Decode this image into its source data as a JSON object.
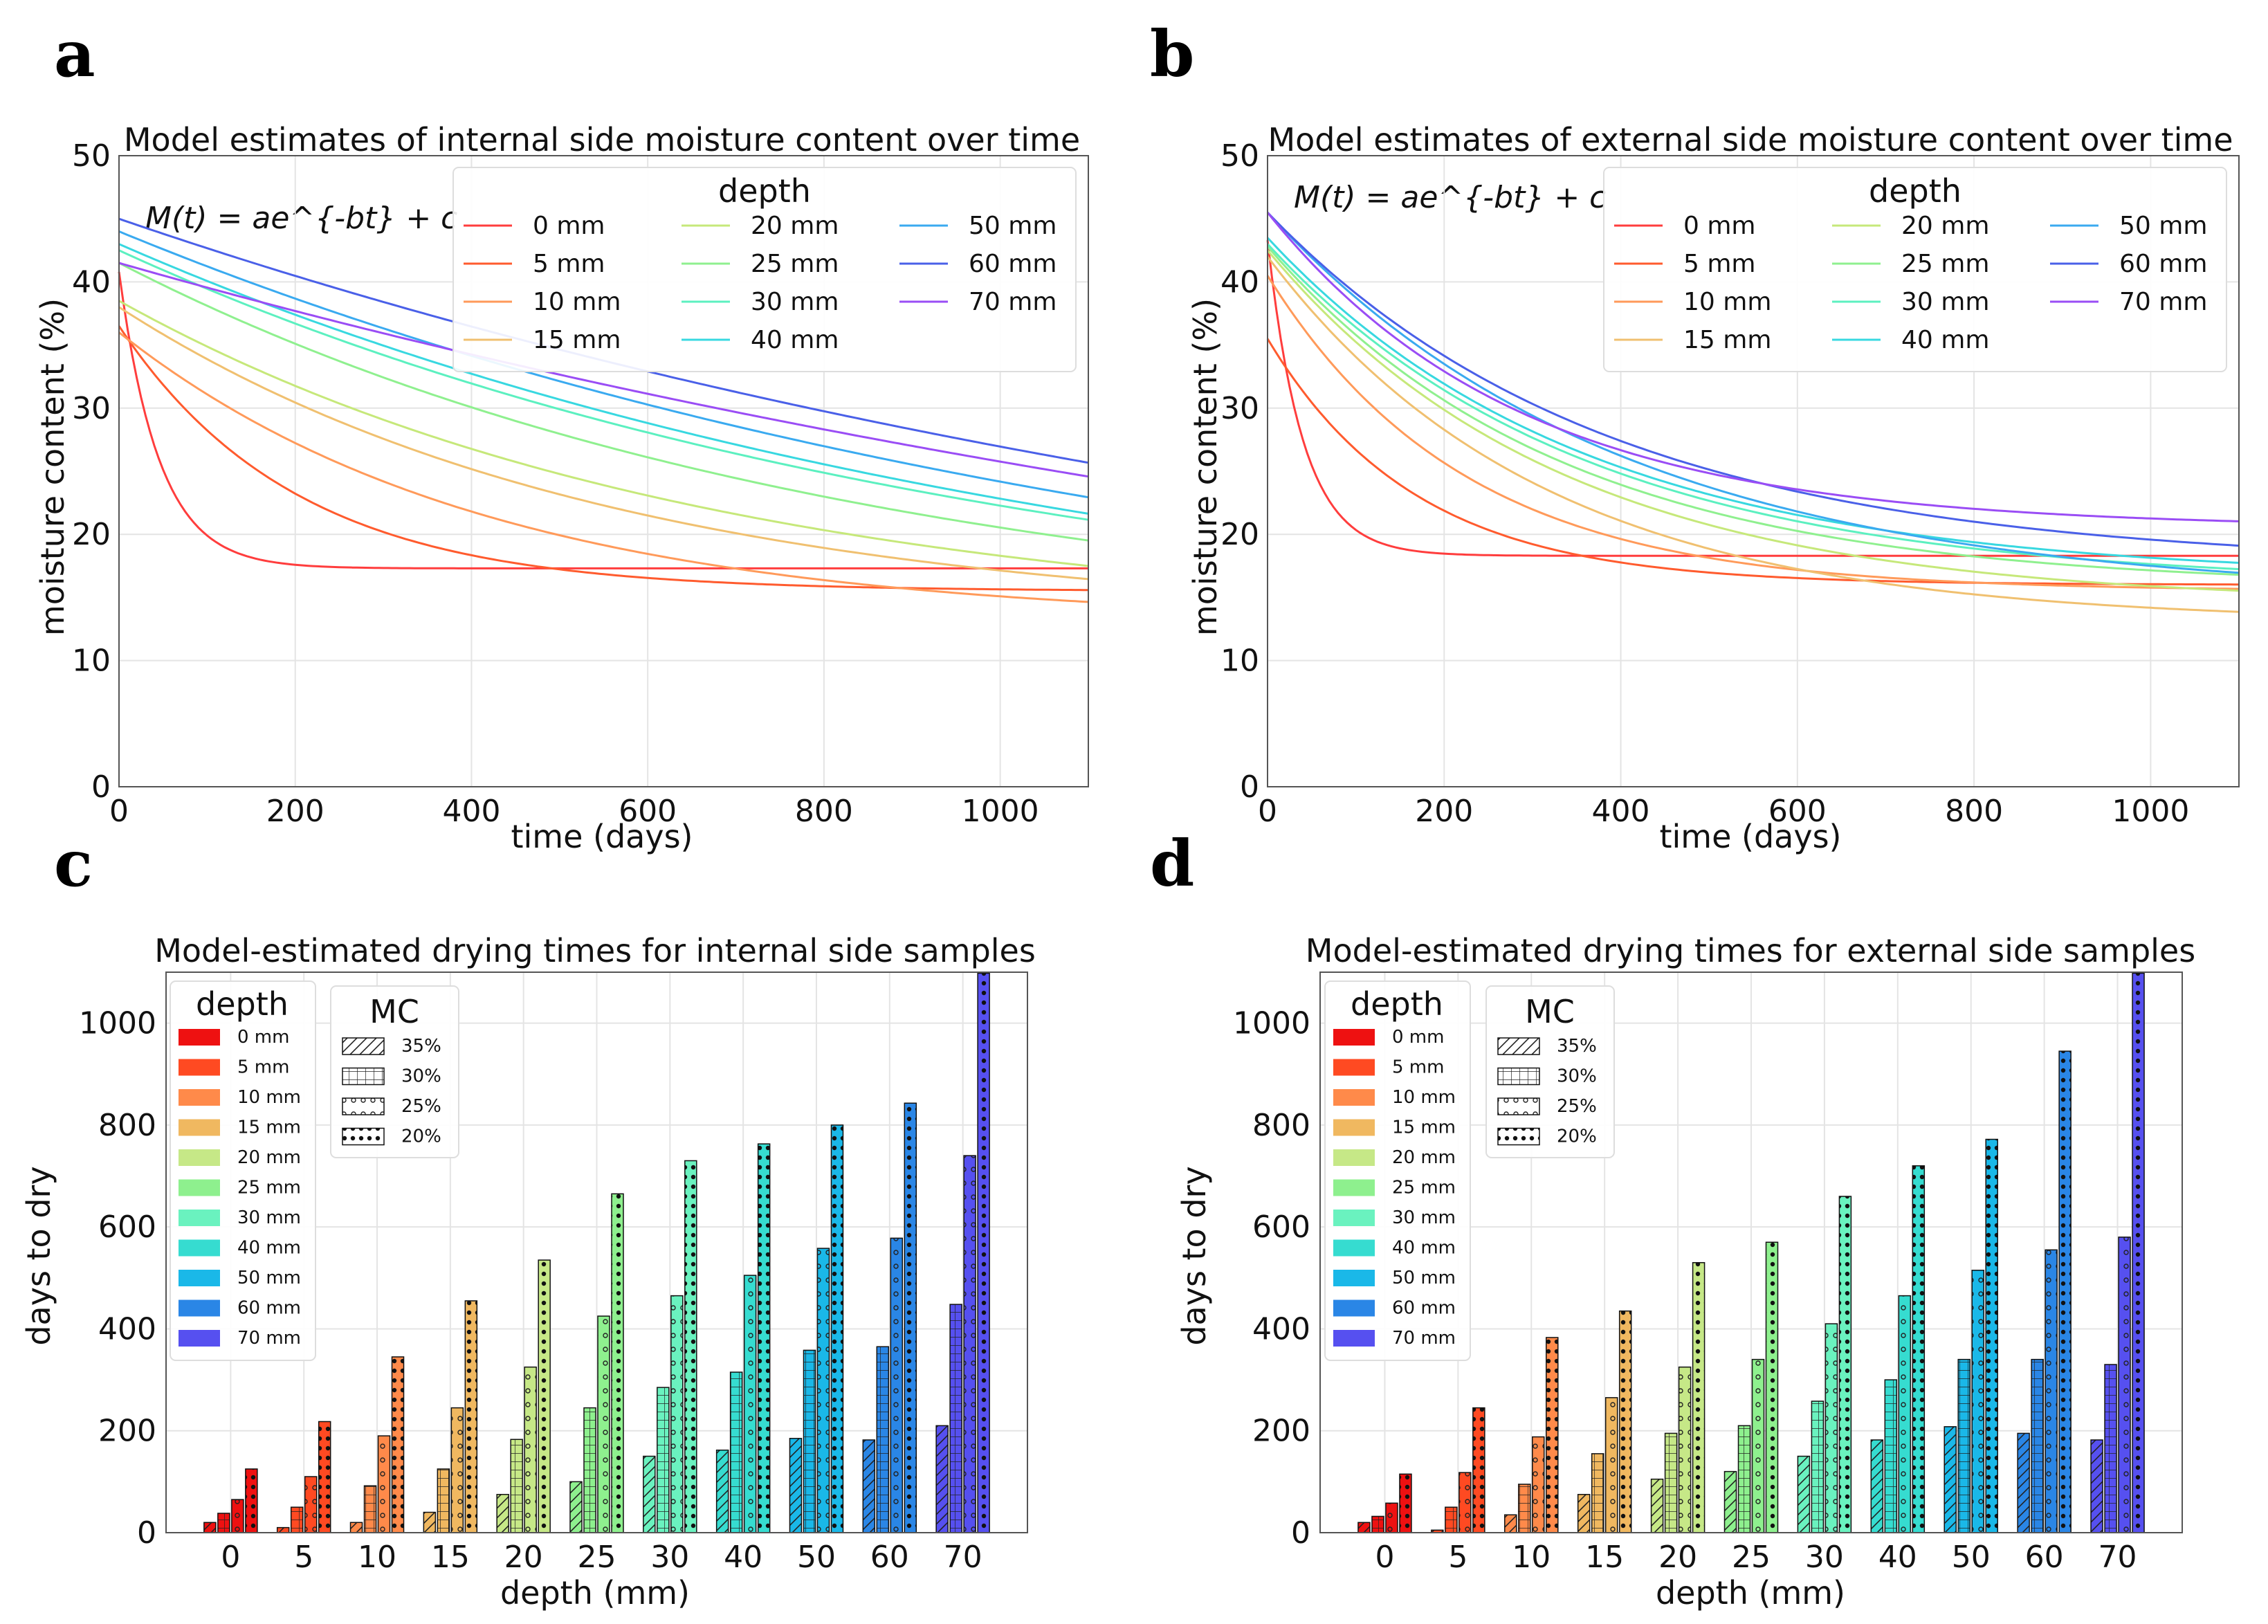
{
  "panels": [
    {
      "id": "a",
      "letter": "a"
    },
    {
      "id": "b",
      "letter": "b"
    },
    {
      "id": "c",
      "letter": "c"
    },
    {
      "id": "d",
      "letter": "d"
    }
  ],
  "chart_data": [
    {
      "id": "a",
      "type": "line",
      "title": "Model estimates of internal side moisture content over time",
      "xlabel": "time (days)",
      "ylabel": "moisture content (%)",
      "xlim": [
        0,
        1100
      ],
      "ylim": [
        0,
        50
      ],
      "xticks": [
        "0",
        "200",
        "400",
        "600",
        "800",
        "1000"
      ],
      "yticks": [
        "0",
        "10",
        "20",
        "30",
        "40",
        "50"
      ],
      "formula": "M(t) = ae^{-bt} + c",
      "legend_title": "depth",
      "grid": true,
      "series": [
        {
          "name": "0 mm",
          "color": "#ff3d3d",
          "a": 23.5,
          "b": 0.022,
          "c": 17.3
        },
        {
          "name": "5 mm",
          "color": "#ff5b2e",
          "a": 21.0,
          "b": 0.005,
          "c": 15.5
        },
        {
          "name": "10 mm",
          "color": "#ff9a5a",
          "a": 23.0,
          "b": 0.0024,
          "c": 13.0
        },
        {
          "name": "15 mm",
          "color": "#f0c070",
          "a": 25.0,
          "b": 0.0018,
          "c": 13.0
        },
        {
          "name": "20 mm",
          "color": "#c6e87a",
          "a": 26.0,
          "b": 0.0015,
          "c": 12.5
        },
        {
          "name": "25 mm",
          "color": "#8ff08f",
          "a": 30.0,
          "b": 0.0012,
          "c": 11.5
        },
        {
          "name": "30 mm",
          "color": "#5cf0c0",
          "a": 32.0,
          "b": 0.001,
          "c": 10.5
        },
        {
          "name": "40 mm",
          "color": "#38d8e0",
          "a": 34.0,
          "b": 0.0009,
          "c": 9.0
        },
        {
          "name": "50 mm",
          "color": "#3aaaf0",
          "a": 36.0,
          "b": 0.0008,
          "c": 8.0
        },
        {
          "name": "60 mm",
          "color": "#4a60e8",
          "a": 40.0,
          "b": 0.0006,
          "c": 5.0
        },
        {
          "name": "70 mm",
          "color": "#9a4df5",
          "a": 40.0,
          "b": 0.0005,
          "c": 1.5
        }
      ]
    },
    {
      "id": "b",
      "type": "line",
      "title": "Model estimates of external side moisture content over time",
      "xlabel": "time (days)",
      "ylabel": "moisture content (%)",
      "xlim": [
        0,
        1100
      ],
      "ylim": [
        0,
        50
      ],
      "xticks": [
        "0",
        "200",
        "400",
        "600",
        "800",
        "1000"
      ],
      "yticks": [
        "0",
        "10",
        "20",
        "30",
        "40",
        "50"
      ],
      "formula": "M(t) = ae^{-bt} + c",
      "legend_title": "depth",
      "grid": true,
      "series": [
        {
          "name": "0 mm",
          "color": "#ff3d3d",
          "a": 25.0,
          "b": 0.025,
          "c": 18.3
        },
        {
          "name": "5 mm",
          "color": "#ff5b2e",
          "a": 19.5,
          "b": 0.006,
          "c": 16.0
        },
        {
          "name": "10 mm",
          "color": "#ff9a5a",
          "a": 25.0,
          "b": 0.0045,
          "c": 15.5
        },
        {
          "name": "15 mm",
          "color": "#f0c070",
          "a": 29.0,
          "b": 0.0032,
          "c": 13.0
        },
        {
          "name": "20 mm",
          "color": "#c6e87a",
          "a": 28.0,
          "b": 0.003,
          "c": 14.5
        },
        {
          "name": "25 mm",
          "color": "#8ff08f",
          "a": 27.0,
          "b": 0.003,
          "c": 15.8
        },
        {
          "name": "30 mm",
          "color": "#5cf0c0",
          "a": 27.0,
          "b": 0.0028,
          "c": 16.0
        },
        {
          "name": "40 mm",
          "color": "#38d8e0",
          "a": 27.0,
          "b": 0.0028,
          "c": 16.5
        },
        {
          "name": "50 mm",
          "color": "#3aaaf0",
          "a": 30.5,
          "b": 0.0025,
          "c": 15.0
        },
        {
          "name": "60 mm",
          "color": "#4a60e8",
          "a": 28.0,
          "b": 0.0026,
          "c": 17.5
        },
        {
          "name": "70 mm",
          "color": "#9a4df5",
          "a": 25.0,
          "b": 0.0035,
          "c": 20.5
        }
      ]
    },
    {
      "id": "c",
      "type": "bar",
      "title": "Model-estimated drying times for internal side samples",
      "xlabel": "depth (mm)",
      "ylabel": "days to dry",
      "ylim": [
        0,
        1100
      ],
      "yticks": [
        "0",
        "200",
        "400",
        "600",
        "800",
        "1000"
      ],
      "categories": [
        "0",
        "5",
        "10",
        "15",
        "20",
        "25",
        "30",
        "40",
        "50",
        "60",
        "70"
      ],
      "depth_legend_title": "depth",
      "depth_labels": [
        "0 mm",
        "5 mm",
        "10 mm",
        "15 mm",
        "20 mm",
        "25 mm",
        "30 mm",
        "40 mm",
        "50 mm",
        "60 mm",
        "70 mm"
      ],
      "depth_colors": [
        "#ee1111",
        "#ff4a22",
        "#ff8a4a",
        "#f0b860",
        "#c6e887",
        "#8ef08e",
        "#6af2bf",
        "#36dcd0",
        "#1ab8e8",
        "#2a86e6",
        "#5650f0"
      ],
      "mc_legend_title": "MC",
      "mc_labels": [
        "35%",
        "30%",
        "25%",
        "20%"
      ],
      "mc_patterns": [
        "diag",
        "grid",
        "circles",
        "stars"
      ],
      "values": [
        [
          20,
          38,
          65,
          125
        ],
        [
          10,
          50,
          110,
          218
        ],
        [
          20,
          92,
          190,
          345
        ],
        [
          40,
          125,
          245,
          455
        ],
        [
          75,
          183,
          325,
          535
        ],
        [
          100,
          245,
          425,
          665
        ],
        [
          150,
          285,
          465,
          730
        ],
        [
          162,
          315,
          505,
          763
        ],
        [
          185,
          358,
          558,
          800
        ],
        [
          182,
          365,
          578,
          843
        ],
        [
          210,
          448,
          740,
          1098
        ]
      ]
    },
    {
      "id": "d",
      "type": "bar",
      "title": "Model-estimated drying times for external side samples",
      "xlabel": "depth (mm)",
      "ylabel": "days to dry",
      "ylim": [
        0,
        1100
      ],
      "yticks": [
        "0",
        "200",
        "400",
        "600",
        "800",
        "1000"
      ],
      "categories": [
        "0",
        "5",
        "10",
        "15",
        "20",
        "25",
        "30",
        "40",
        "50",
        "60",
        "70"
      ],
      "depth_legend_title": "depth",
      "depth_labels": [
        "0 mm",
        "5 mm",
        "10 mm",
        "15 mm",
        "20 mm",
        "25 mm",
        "30 mm",
        "40 mm",
        "50 mm",
        "60 mm",
        "70 mm"
      ],
      "depth_colors": [
        "#ee1111",
        "#ff4a22",
        "#ff8a4a",
        "#f0b860",
        "#c6e887",
        "#8ef08e",
        "#6af2bf",
        "#36dcd0",
        "#1ab8e8",
        "#2a86e6",
        "#5650f0"
      ],
      "mc_legend_title": "MC",
      "mc_labels": [
        "35%",
        "30%",
        "25%",
        "20%"
      ],
      "mc_patterns": [
        "diag",
        "grid",
        "circles",
        "stars"
      ],
      "values": [
        [
          20,
          32,
          58,
          115
        ],
        [
          5,
          50,
          118,
          245
        ],
        [
          35,
          95,
          188,
          383
        ],
        [
          75,
          155,
          265,
          435
        ],
        [
          105,
          195,
          325,
          530
        ],
        [
          120,
          210,
          340,
          570
        ],
        [
          150,
          258,
          410,
          660
        ],
        [
          182,
          300,
          465,
          720
        ],
        [
          208,
          340,
          515,
          772
        ],
        [
          195,
          340,
          555,
          945
        ],
        [
          182,
          330,
          580,
          1098
        ]
      ]
    }
  ]
}
